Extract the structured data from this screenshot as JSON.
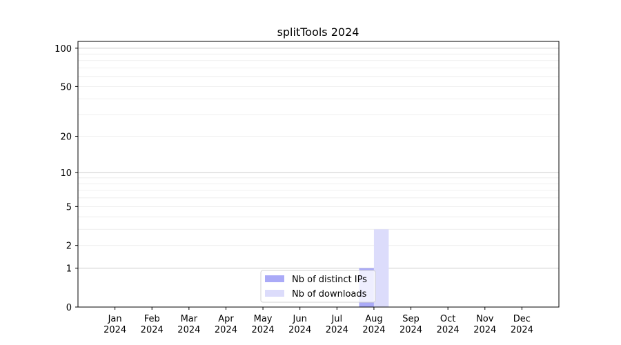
{
  "chart_data": {
    "type": "bar",
    "title": "splitTools 2024",
    "xlabel": "",
    "ylabel": "",
    "categories": [
      "Jan\n2024",
      "Feb\n2024",
      "Mar\n2024",
      "Apr\n2024",
      "May\n2024",
      "Jun\n2024",
      "Jul\n2024",
      "Aug\n2024",
      "Sep\n2024",
      "Oct\n2024",
      "Nov\n2024",
      "Dec\n2024"
    ],
    "series": [
      {
        "name": "Nb of distinct IPs",
        "color": "#aaaaf7",
        "values": [
          0,
          0,
          0,
          0,
          0,
          0,
          0,
          1,
          0,
          0,
          0,
          0
        ]
      },
      {
        "name": "Nb of downloads",
        "color": "#dcdcfb",
        "values": [
          0,
          0,
          0,
          0,
          0,
          0,
          0,
          3,
          0,
          0,
          0,
          0
        ]
      }
    ],
    "yscale": "log(1+y)",
    "ylim": [
      0,
      113
    ],
    "yticks": [
      0,
      1,
      2,
      5,
      10,
      20,
      50,
      100
    ],
    "grid": true,
    "legend": "bottom-center"
  }
}
